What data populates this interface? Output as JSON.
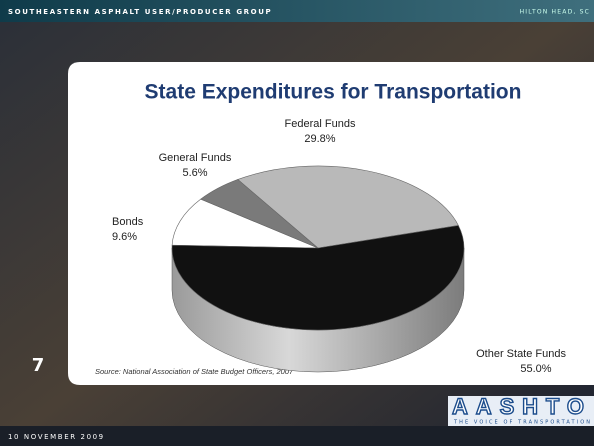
{
  "header": {
    "left": "SOUTHEASTERN ASPHALT USER/PRODUCER GROUP",
    "right": "HILTON HEAD, SC"
  },
  "slide_number": "7",
  "source": "Source: National Association of State Budget Officers, 2007",
  "footer": "10 NOVEMBER 2009",
  "logo": {
    "name": "AASHTO",
    "tagline": "THE VOICE OF TRANSPORTATION"
  },
  "chart_data": {
    "type": "pie",
    "title": "State Expenditures for Transportation",
    "categories": [
      "Bonds",
      "General Funds",
      "Federal Funds",
      "Other State Funds"
    ],
    "values": [
      9.6,
      5.6,
      29.8,
      55.0
    ],
    "value_labels": [
      "9.6%",
      "5.6%",
      "29.8%",
      "55.0%"
    ],
    "colors": [
      "#ffffff",
      "#7a7a7a",
      "#b9b9b9",
      "#111111"
    ]
  }
}
